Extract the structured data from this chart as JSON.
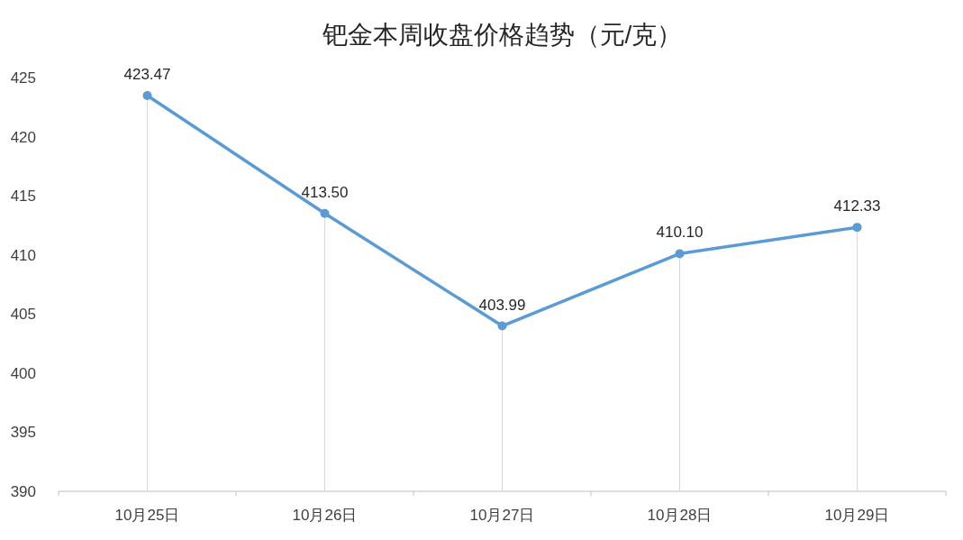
{
  "chart_data": {
    "type": "line",
    "title": "钯金本周收盘价格趋势（元/克）",
    "categories": [
      "10月25日",
      "10月26日",
      "10月27日",
      "10月28日",
      "10月29日"
    ],
    "values": [
      423.47,
      413.5,
      403.99,
      410.1,
      412.33
    ],
    "value_labels": [
      "423.47",
      "413.50",
      "403.99",
      "410.10",
      "412.33"
    ],
    "color": "#5b9bd5",
    "marker": "circle",
    "ylim": [
      390,
      425
    ],
    "yticks": [
      390,
      395,
      400,
      405,
      410,
      415,
      420,
      425
    ]
  }
}
